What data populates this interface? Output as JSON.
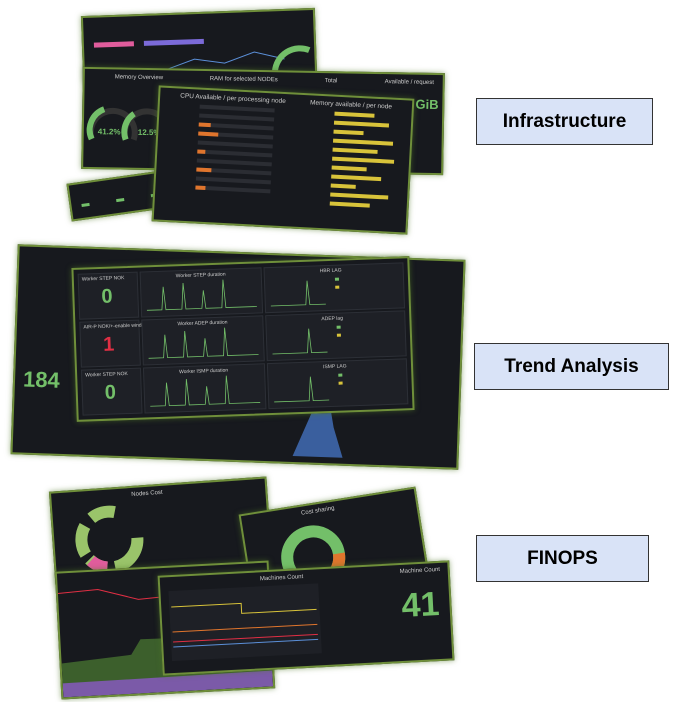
{
  "infrastructure": {
    "label": "Infrastructure",
    "memory_panel": {
      "title": "Memory Overview",
      "ram_title": "RAM for selected NODEs",
      "total": "Total",
      "available_title": "Available / request",
      "available_value": "166.5 GiB",
      "gauge_1": "41.2%",
      "gauge_2": "12.5%"
    },
    "node_panel": {
      "cpu_title": "CPU Available / per processing node",
      "mem_title": "Memory available / per node"
    }
  },
  "trend_analysis": {
    "label": "Trend Analysis",
    "big_number": "184",
    "cells": [
      {
        "stat_title": "Worker STEP NOK",
        "stat_value": "0",
        "chart_title": "Worker STEP duration",
        "lag_title": "HBR LAG"
      },
      {
        "stat_title": "AIR-P NOK/+-enable wind",
        "stat_value": "1",
        "chart_title": "Worker ADEP duration",
        "lag_title": "ADEP lag"
      },
      {
        "stat_title": "Worker STEP NOK",
        "stat_value": "0",
        "chart_title": "Worker ISMP duration",
        "lag_title": "ISMP LAG"
      }
    ]
  },
  "finops": {
    "label": "FINOPS",
    "donut_1_title": "Nodes Cost",
    "donut_2_title": "Cost sharing",
    "machines_title": "Machines Count",
    "count_title": "Machine Count",
    "count_value": "41"
  }
}
